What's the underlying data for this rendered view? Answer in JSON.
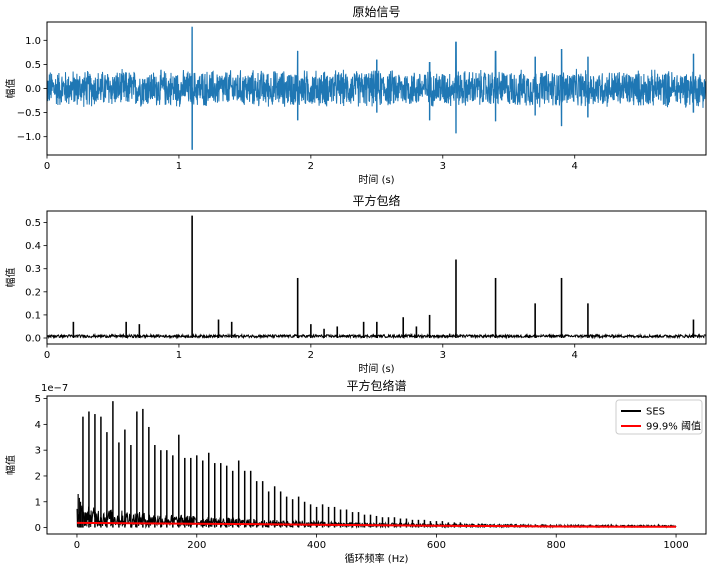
{
  "chart_data": [
    {
      "type": "line",
      "title": "原始信号",
      "xlabel": "时间 (s)",
      "ylabel": "幅值",
      "xlim": [
        0,
        4.995
      ],
      "ylim": [
        -1.38,
        1.38
      ],
      "xticks": [
        0,
        1,
        2,
        3,
        4
      ],
      "xtick_labels": [
        "0",
        "1",
        "2",
        "3",
        "4"
      ],
      "yticks": [
        -1.0,
        -0.5,
        0.0,
        0.5,
        1.0
      ],
      "ytick_labels": [
        "−1.0",
        "−0.5",
        "0.0",
        "0.5",
        "1.0"
      ],
      "grid": false,
      "series": [
        {
          "color": "#1f77b4",
          "noise_amplitude": 0.42,
          "impulses": [
            {
              "x": 1.1,
              "y_max": 1.28,
              "y_min": -1.27
            },
            {
              "x": 1.9,
              "y_max": 0.78,
              "y_min": -0.66
            },
            {
              "x": 2.5,
              "y_max": 0.6,
              "y_min": -0.5
            },
            {
              "x": 2.9,
              "y_max": 0.55,
              "y_min": -0.66
            },
            {
              "x": 3.1,
              "y_max": 0.97,
              "y_min": -0.93
            },
            {
              "x": 3.4,
              "y_max": 0.78,
              "y_min": -0.68
            },
            {
              "x": 3.7,
              "y_max": 0.66,
              "y_min": -0.56
            },
            {
              "x": 3.9,
              "y_max": 0.82,
              "y_min": -0.78
            },
            {
              "x": 4.1,
              "y_max": 0.66,
              "y_min": -0.6
            },
            {
              "x": 4.9,
              "y_max": 0.72,
              "y_min": -0.5
            }
          ]
        }
      ]
    },
    {
      "type": "line",
      "title": "平方包络",
      "xlabel": "时间 (s)",
      "ylabel": "幅值",
      "xlim": [
        0,
        4.995
      ],
      "ylim": [
        -0.026,
        0.55
      ],
      "xticks": [
        0,
        1,
        2,
        3,
        4
      ],
      "xtick_labels": [
        "0",
        "1",
        "2",
        "3",
        "4"
      ],
      "yticks": [
        0.0,
        0.1,
        0.2,
        0.3,
        0.4,
        0.5
      ],
      "ytick_labels": [
        "0.0",
        "0.1",
        "0.2",
        "0.3",
        "0.4",
        "0.5"
      ],
      "grid": false,
      "series": [
        {
          "color": "#000000",
          "baseline": 0.008,
          "spikes": [
            {
              "x": 0.2,
              "y": 0.07
            },
            {
              "x": 0.6,
              "y": 0.07
            },
            {
              "x": 0.7,
              "y": 0.06
            },
            {
              "x": 1.1,
              "y": 0.53
            },
            {
              "x": 1.3,
              "y": 0.08
            },
            {
              "x": 1.4,
              "y": 0.07
            },
            {
              "x": 1.9,
              "y": 0.26
            },
            {
              "x": 2.0,
              "y": 0.06
            },
            {
              "x": 2.1,
              "y": 0.04
            },
            {
              "x": 2.2,
              "y": 0.05
            },
            {
              "x": 2.4,
              "y": 0.07
            },
            {
              "x": 2.5,
              "y": 0.07
            },
            {
              "x": 2.7,
              "y": 0.09
            },
            {
              "x": 2.8,
              "y": 0.05
            },
            {
              "x": 2.9,
              "y": 0.1
            },
            {
              "x": 3.1,
              "y": 0.34
            },
            {
              "x": 3.4,
              "y": 0.26
            },
            {
              "x": 3.7,
              "y": 0.15
            },
            {
              "x": 3.9,
              "y": 0.26
            },
            {
              "x": 4.1,
              "y": 0.15
            },
            {
              "x": 4.9,
              "y": 0.08
            }
          ]
        }
      ]
    },
    {
      "type": "line",
      "title": "平方包络谱",
      "xlabel": "循环频率 (Hz)",
      "ylabel": "幅值",
      "exponent_label": "1e−7",
      "xlim": [
        -50,
        1050
      ],
      "ylim": [
        -0.25,
        5.1
      ],
      "xticks": [
        0,
        200,
        400,
        600,
        800,
        1000
      ],
      "xtick_labels": [
        "0",
        "200",
        "400",
        "600",
        "800",
        "1000"
      ],
      "yticks": [
        0,
        1,
        2,
        3,
        4,
        5
      ],
      "ytick_labels": [
        "0",
        "1",
        "2",
        "3",
        "4",
        "5"
      ],
      "legend": {
        "placement": "top-right",
        "entries": [
          {
            "label": "SES",
            "color": "#000000"
          },
          {
            "label": "99.9% 阈值",
            "color": "#ff0000"
          }
        ]
      },
      "series": [
        {
          "name": "SES",
          "color": "#000000",
          "x_end": 1000,
          "peak_spacing_hz": 10,
          "peaks": [
            {
              "x": 10,
              "y": 4.3
            },
            {
              "x": 20,
              "y": 4.5
            },
            {
              "x": 30,
              "y": 4.4
            },
            {
              "x": 40,
              "y": 4.3
            },
            {
              "x": 50,
              "y": 3.7
            },
            {
              "x": 60,
              "y": 4.9
            },
            {
              "x": 70,
              "y": 3.3
            },
            {
              "x": 80,
              "y": 3.8
            },
            {
              "x": 90,
              "y": 3.2
            },
            {
              "x": 100,
              "y": 4.5
            },
            {
              "x": 110,
              "y": 4.6
            },
            {
              "x": 120,
              "y": 3.9
            },
            {
              "x": 130,
              "y": 3.2
            },
            {
              "x": 140,
              "y": 3.0
            },
            {
              "x": 150,
              "y": 3.0
            },
            {
              "x": 160,
              "y": 2.8
            },
            {
              "x": 170,
              "y": 3.6
            },
            {
              "x": 180,
              "y": 2.7
            },
            {
              "x": 190,
              "y": 2.7
            },
            {
              "x": 200,
              "y": 2.8
            },
            {
              "x": 210,
              "y": 2.6
            },
            {
              "x": 220,
              "y": 2.9
            },
            {
              "x": 230,
              "y": 2.5
            },
            {
              "x": 240,
              "y": 2.5
            },
            {
              "x": 250,
              "y": 2.4
            },
            {
              "x": 260,
              "y": 2.2
            },
            {
              "x": 270,
              "y": 2.6
            },
            {
              "x": 280,
              "y": 2.2
            },
            {
              "x": 290,
              "y": 2.2
            },
            {
              "x": 300,
              "y": 1.8
            },
            {
              "x": 310,
              "y": 1.8
            },
            {
              "x": 320,
              "y": 1.4
            },
            {
              "x": 330,
              "y": 1.6
            },
            {
              "x": 340,
              "y": 1.4
            },
            {
              "x": 350,
              "y": 1.2
            },
            {
              "x": 360,
              "y": 1.1
            },
            {
              "x": 370,
              "y": 1.2
            },
            {
              "x": 380,
              "y": 1.0
            },
            {
              "x": 390,
              "y": 0.9
            },
            {
              "x": 400,
              "y": 0.8
            },
            {
              "x": 410,
              "y": 0.9
            },
            {
              "x": 420,
              "y": 0.8
            },
            {
              "x": 430,
              "y": 0.8
            },
            {
              "x": 440,
              "y": 0.7
            },
            {
              "x": 450,
              "y": 0.7
            },
            {
              "x": 460,
              "y": 0.6
            },
            {
              "x": 470,
              "y": 0.6
            },
            {
              "x": 480,
              "y": 0.5
            },
            {
              "x": 490,
              "y": 0.5
            },
            {
              "x": 500,
              "y": 0.45
            },
            {
              "x": 510,
              "y": 0.4
            },
            {
              "x": 520,
              "y": 0.4
            },
            {
              "x": 530,
              "y": 0.4
            },
            {
              "x": 540,
              "y": 0.35
            },
            {
              "x": 550,
              "y": 0.35
            },
            {
              "x": 560,
              "y": 0.3
            },
            {
              "x": 570,
              "y": 0.3
            },
            {
              "x": 580,
              "y": 0.3
            },
            {
              "x": 590,
              "y": 0.25
            },
            {
              "x": 600,
              "y": 0.25
            },
            {
              "x": 610,
              "y": 0.25
            },
            {
              "x": 620,
              "y": 0.2
            },
            {
              "x": 630,
              "y": 0.2
            },
            {
              "x": 640,
              "y": 0.2
            },
            {
              "x": 650,
              "y": 0.15
            },
            {
              "x": 660,
              "y": 0.15
            },
            {
              "x": 670,
              "y": 0.15
            },
            {
              "x": 680,
              "y": 0.12
            },
            {
              "x": 690,
              "y": 0.12
            },
            {
              "x": 700,
              "y": 0.1
            },
            {
              "x": 710,
              "y": 0.1
            },
            {
              "x": 720,
              "y": 0.1
            },
            {
              "x": 730,
              "y": 0.08
            },
            {
              "x": 740,
              "y": 0.08
            },
            {
              "x": 750,
              "y": 0.08
            },
            {
              "x": 760,
              "y": 0.07
            },
            {
              "x": 770,
              "y": 0.07
            },
            {
              "x": 780,
              "y": 0.06
            },
            {
              "x": 790,
              "y": 0.06
            },
            {
              "x": 800,
              "y": 0.05
            },
            {
              "x": 810,
              "y": 0.05
            },
            {
              "x": 820,
              "y": 0.05
            },
            {
              "x": 830,
              "y": 0.04
            },
            {
              "x": 840,
              "y": 0.04
            },
            {
              "x": 850,
              "y": 0.04
            }
          ]
        },
        {
          "name": "99.9% 阈值",
          "color": "#ff0000",
          "points": [
            [
              0,
              0.18
            ],
            [
              200,
              0.15
            ],
            [
              400,
              0.11
            ],
            [
              600,
              0.07
            ],
            [
              800,
              0.04
            ],
            [
              1000,
              0.03
            ]
          ]
        }
      ]
    }
  ]
}
